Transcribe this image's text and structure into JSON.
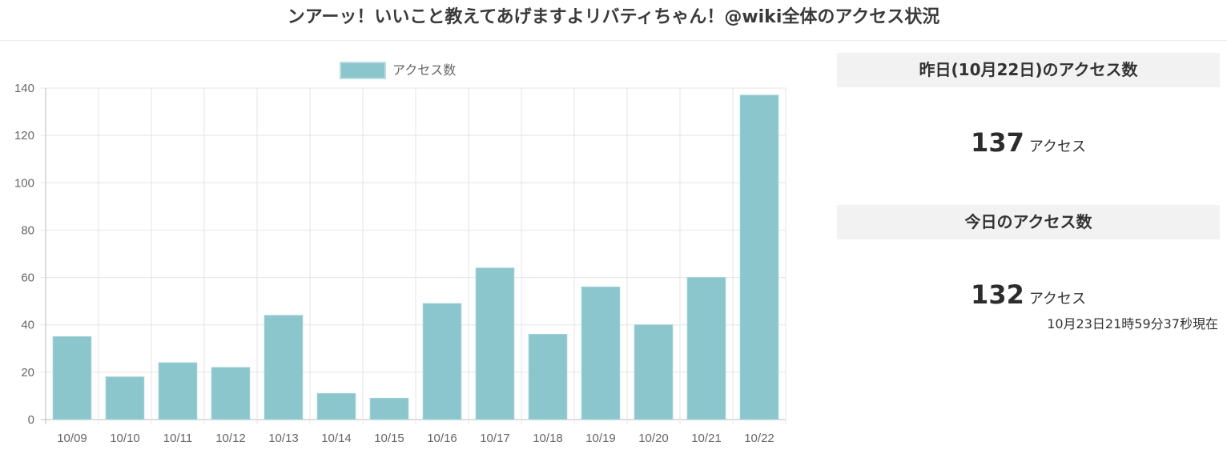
{
  "page": {
    "title": "ンアーッ！いいこと教えてあげますよリバティちゃん！@wiki全体のアクセス状況"
  },
  "chart_data": {
    "type": "bar",
    "categories": [
      "10/09",
      "10/10",
      "10/11",
      "10/12",
      "10/13",
      "10/14",
      "10/15",
      "10/16",
      "10/17",
      "10/18",
      "10/19",
      "10/20",
      "10/21",
      "10/22"
    ],
    "series": [
      {
        "name": "アクセス数",
        "values": [
          35,
          18,
          24,
          22,
          44,
          11,
          9,
          49,
          64,
          36,
          56,
          40,
          60,
          137
        ]
      }
    ],
    "yticks": [
      0,
      20,
      40,
      60,
      80,
      100,
      120,
      140
    ],
    "ylim": [
      0,
      140
    ],
    "grid": true,
    "legend": "top-center",
    "bar_color": "#8cc6cd"
  },
  "yesterday": {
    "heading": "昨日(10月22日)のアクセス数",
    "count": "137",
    "unit": "アクセス"
  },
  "today": {
    "heading": "今日のアクセス数",
    "count": "132",
    "unit": "アクセス",
    "timestamp": "10月23日21時59分37秒現在"
  }
}
